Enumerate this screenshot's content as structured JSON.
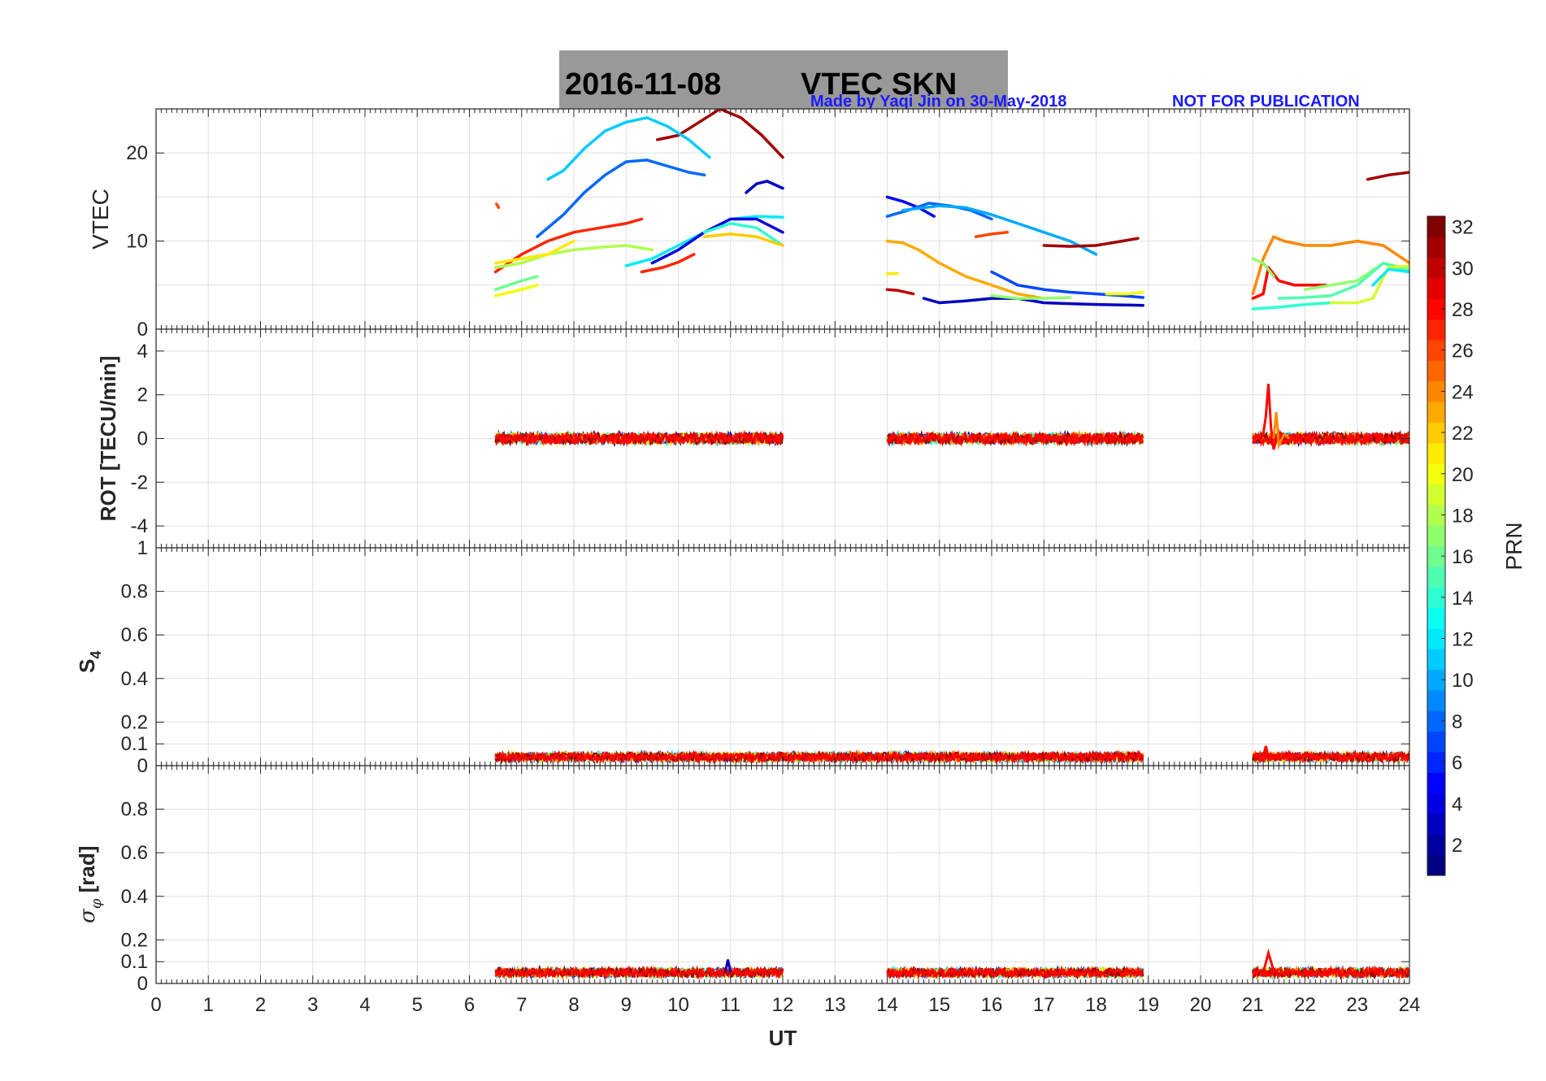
{
  "header": {
    "date": "2016-11-08",
    "title": "VTEC  SKN",
    "credit": "Made by Yaqi Jin on 30-May-2018",
    "notice": "NOT FOR PUBLICATION",
    "title_bg": "#999999",
    "credit_color": "#1a1aff"
  },
  "colorbar": {
    "label": "PRN",
    "ticks": [
      2,
      4,
      6,
      8,
      10,
      12,
      14,
      16,
      18,
      20,
      22,
      24,
      26,
      28,
      30,
      32
    ],
    "range": [
      1,
      32
    ],
    "colormap": "jet"
  },
  "chart_data": [
    {
      "type": "line",
      "panel": "vtec",
      "ylabel": "VTEC",
      "ylim": [
        0,
        25
      ],
      "yticks": [
        0,
        10,
        20
      ],
      "xlim": [
        0,
        24
      ],
      "grid": true,
      "series": [
        {
          "prn": 31,
          "x": [
            9.6,
            10.0,
            10.4,
            10.8,
            11.2,
            11.6,
            12.0
          ],
          "y": [
            21.5,
            22.0,
            23.5,
            25.0,
            24.0,
            22.0,
            19.5
          ]
        },
        {
          "prn": 11,
          "x": [
            7.5,
            7.8,
            8.2,
            8.6,
            9.0,
            9.4,
            9.8,
            10.2,
            10.6
          ],
          "y": [
            17.0,
            18.0,
            20.5,
            22.5,
            23.5,
            24.0,
            23.0,
            21.5,
            19.5
          ]
        },
        {
          "prn": 8,
          "x": [
            7.3,
            7.8,
            8.2,
            8.6,
            9.0,
            9.4,
            9.8,
            10.2,
            10.5
          ],
          "y": [
            10.5,
            13.0,
            15.5,
            17.5,
            19.0,
            19.2,
            18.5,
            17.8,
            17.5
          ]
        },
        {
          "prn": 3,
          "x": [
            11.3,
            11.5,
            11.7,
            12.0
          ],
          "y": [
            15.5,
            16.5,
            16.8,
            16.0
          ]
        },
        {
          "prn": 27,
          "x": [
            6.5,
            7.0,
            7.5,
            8.0,
            8.5,
            9.0,
            9.3
          ],
          "y": [
            6.5,
            8.5,
            10.0,
            11.0,
            11.5,
            12.0,
            12.5
          ]
        },
        {
          "prn": 18,
          "x": [
            6.5,
            7.0,
            7.5,
            8.0,
            8.5,
            9.0,
            9.5
          ],
          "y": [
            7.0,
            7.5,
            8.5,
            9.0,
            9.3,
            9.5,
            9.0
          ]
        },
        {
          "prn": 21,
          "x": [
            6.5,
            7.0,
            7.5,
            8.0
          ],
          "y": [
            7.5,
            8.0,
            8.5,
            10.0
          ]
        },
        {
          "prn": 16,
          "x": [
            6.5,
            7.0,
            7.3
          ],
          "y": [
            4.5,
            5.5,
            6.0
          ]
        },
        {
          "prn": 20,
          "x": [
            6.5,
            7.0,
            7.3
          ],
          "y": [
            3.8,
            4.5,
            5.0
          ]
        },
        {
          "prn": 12,
          "x": [
            9.0,
            9.5,
            10.0,
            10.5,
            11.0,
            11.5,
            12.0
          ],
          "y": [
            7.2,
            8.0,
            9.5,
            11.0,
            12.5,
            12.8,
            12.7
          ]
        },
        {
          "prn": 4,
          "x": [
            9.5,
            10.0,
            10.5,
            11.0,
            11.5,
            12.0
          ],
          "y": [
            7.5,
            9.0,
            11.0,
            12.5,
            12.5,
            11.0
          ]
        },
        {
          "prn": 14,
          "x": [
            10.5,
            11.0,
            11.5,
            12.0
          ],
          "y": [
            11.0,
            12.0,
            11.5,
            9.5
          ]
        },
        {
          "prn": 22,
          "x": [
            10.5,
            11.0,
            11.5,
            12.0
          ],
          "y": [
            10.5,
            10.8,
            10.5,
            9.5
          ]
        },
        {
          "prn": 27,
          "x": [
            9.3,
            9.7,
            10.0,
            10.3
          ],
          "y": [
            6.5,
            7.0,
            7.6,
            8.5
          ]
        },
        {
          "prn": 26,
          "x": [
            6.52,
            6.56
          ],
          "y": [
            14.2,
            13.8
          ]
        },
        {
          "prn": 5,
          "x": [
            14.0,
            14.3,
            14.6,
            14.9
          ],
          "y": [
            15.0,
            14.5,
            13.8,
            12.8
          ]
        },
        {
          "prn": 8,
          "x": [
            14.0,
            14.4,
            14.8,
            15.2,
            15.6,
            16.0
          ],
          "y": [
            12.8,
            13.5,
            14.3,
            14.0,
            13.5,
            12.5
          ]
        },
        {
          "prn": 10,
          "x": [
            14.3,
            15.0,
            15.5,
            16.0,
            16.5,
            17.0,
            17.5,
            18.0
          ],
          "y": [
            13.5,
            14.0,
            13.8,
            13.0,
            12.0,
            11.0,
            10.0,
            8.5
          ]
        },
        {
          "prn": 31,
          "x": [
            17.0,
            17.5,
            18.0,
            18.5,
            18.8
          ],
          "y": [
            9.5,
            9.4,
            9.5,
            10.0,
            10.3
          ]
        },
        {
          "prn": 26,
          "x": [
            15.7,
            16.0,
            16.3
          ],
          "y": [
            10.5,
            10.8,
            11.0
          ]
        },
        {
          "prn": 23,
          "x": [
            14.0,
            14.3,
            14.6,
            15.0,
            15.5,
            16.0,
            16.5,
            17.0
          ],
          "y": [
            10.0,
            9.8,
            9.0,
            7.5,
            6.0,
            5.0,
            4.0,
            3.5
          ]
        },
        {
          "prn": 7,
          "x": [
            16.0,
            16.5,
            17.0,
            17.5,
            18.0,
            18.5,
            18.9
          ],
          "y": [
            6.5,
            5.0,
            4.5,
            4.2,
            4.0,
            3.8,
            3.6
          ]
        },
        {
          "prn": 21,
          "x": [
            14.0,
            14.2
          ],
          "y": [
            6.3,
            6.3
          ]
        },
        {
          "prn": 30,
          "x": [
            14.0,
            14.2,
            14.5
          ],
          "y": [
            4.5,
            4.4,
            4.0
          ]
        },
        {
          "prn": 3,
          "x": [
            14.7,
            15.0,
            15.5,
            16.0,
            16.5,
            17.0,
            17.5,
            18.0,
            18.9
          ],
          "y": [
            3.5,
            3.0,
            3.2,
            3.5,
            3.5,
            3.0,
            2.9,
            2.8,
            2.7
          ]
        },
        {
          "prn": 17,
          "x": [
            16.0,
            16.5,
            17.0,
            17.5
          ],
          "y": [
            3.8,
            3.5,
            3.5,
            3.6
          ]
        },
        {
          "prn": 20,
          "x": [
            18.2,
            18.6,
            18.9
          ],
          "y": [
            4.0,
            4.0,
            4.2
          ]
        },
        {
          "prn": 24,
          "x": [
            21.0,
            21.2,
            21.4,
            21.6,
            22.0,
            22.5,
            23.0,
            23.5,
            24.0
          ],
          "y": [
            4.0,
            8.0,
            10.5,
            10.0,
            9.5,
            9.5,
            10.0,
            9.5,
            7.5
          ]
        },
        {
          "prn": 28,
          "x": [
            21.0,
            21.2,
            21.3,
            21.5,
            21.8,
            22.0,
            22.4
          ],
          "y": [
            3.5,
            4.0,
            7.0,
            5.5,
            5.0,
            5.0,
            5.0
          ]
        },
        {
          "prn": 17,
          "x": [
            21.0,
            21.2,
            21.4
          ],
          "y": [
            8.0,
            7.5,
            6.0
          ]
        },
        {
          "prn": 17,
          "x": [
            22.0,
            22.5,
            23.0,
            23.5,
            24.0
          ],
          "y": [
            4.5,
            5.0,
            5.5,
            7.5,
            6.8
          ]
        },
        {
          "prn": 14,
          "x": [
            21.0,
            21.5,
            22.0,
            22.5
          ],
          "y": [
            2.3,
            2.5,
            2.8,
            3.0
          ]
        },
        {
          "prn": 15,
          "x": [
            21.5,
            22.0,
            22.5,
            23.0,
            23.5,
            24.0
          ],
          "y": [
            3.5,
            3.6,
            3.8,
            5.0,
            7.5,
            6.5
          ]
        },
        {
          "prn": 19,
          "x": [
            22.5,
            23.0,
            23.3,
            23.6,
            24.0
          ],
          "y": [
            3.0,
            3.0,
            3.5,
            7.0,
            7.2
          ]
        },
        {
          "prn": 12,
          "x": [
            23.3,
            23.6,
            24.0
          ],
          "y": [
            5.0,
            6.8,
            6.5
          ]
        },
        {
          "prn": 31,
          "x": [
            23.2,
            23.6,
            24.0
          ],
          "y": [
            17.0,
            17.5,
            17.8
          ]
        }
      ]
    },
    {
      "type": "line",
      "panel": "rot",
      "ylabel": "ROT [TECU/min]",
      "ylim": [
        -5,
        5
      ],
      "yticks": [
        -4,
        -2,
        0,
        2,
        4
      ],
      "xlim": [
        0,
        24
      ],
      "grid": true,
      "segments": [
        [
          6.5,
          12.0
        ],
        [
          14.0,
          18.9
        ],
        [
          21.0,
          24.0
        ]
      ],
      "baseline": 0,
      "noise_amplitude": 0.25,
      "spikes": [
        {
          "prn": 28,
          "x": [
            21.0,
            21.1,
            21.2,
            21.25,
            21.3,
            21.35,
            21.4,
            21.5,
            21.6,
            21.8
          ],
          "y": [
            0,
            0.1,
            0.2,
            1.0,
            2.5,
            0.5,
            -0.5,
            0.3,
            -0.2,
            0.0
          ]
        },
        {
          "prn": 24,
          "x": [
            21.4,
            21.45,
            21.5,
            21.6,
            21.7
          ],
          "y": [
            0.0,
            1.2,
            -0.3,
            0.2,
            0.0
          ]
        }
      ]
    },
    {
      "type": "line",
      "panel": "s4",
      "ylabel": "S4",
      "ylim": [
        0,
        1
      ],
      "yticks": [
        0,
        0.1,
        0.2,
        0.4,
        0.6,
        0.8,
        1
      ],
      "xlim": [
        0,
        24
      ],
      "grid": true,
      "segments": [
        [
          6.5,
          18.9
        ],
        [
          21.0,
          24.0
        ]
      ],
      "baseline": 0.04,
      "noise_amplitude": 0.02,
      "spikes": [
        {
          "prn": 28,
          "x": [
            21.2,
            21.25,
            21.3
          ],
          "y": [
            0.04,
            0.09,
            0.04
          ]
        }
      ]
    },
    {
      "type": "line",
      "panel": "sigma_phi",
      "ylabel": "σ_φ [rad]",
      "ylim": [
        0,
        1
      ],
      "yticks": [
        0,
        0.1,
        0.2,
        0.4,
        0.6,
        0.8
      ],
      "xlim": [
        0,
        24
      ],
      "grid": true,
      "segments": [
        [
          6.5,
          12.0
        ],
        [
          14.0,
          18.9
        ],
        [
          21.0,
          24.0
        ]
      ],
      "baseline": 0.05,
      "noise_amplitude": 0.02,
      "spikes": [
        {
          "prn": 3,
          "x": [
            10.9,
            10.95,
            11.0
          ],
          "y": [
            0.05,
            0.11,
            0.05
          ]
        },
        {
          "prn": 28,
          "x": [
            21.2,
            21.3,
            21.4
          ],
          "y": [
            0.05,
            0.14,
            0.06
          ]
        }
      ],
      "xlabel": "UT",
      "xticks": [
        0,
        1,
        2,
        3,
        4,
        5,
        6,
        7,
        8,
        9,
        10,
        11,
        12,
        13,
        14,
        15,
        16,
        17,
        18,
        19,
        20,
        21,
        22,
        23,
        24
      ]
    }
  ]
}
